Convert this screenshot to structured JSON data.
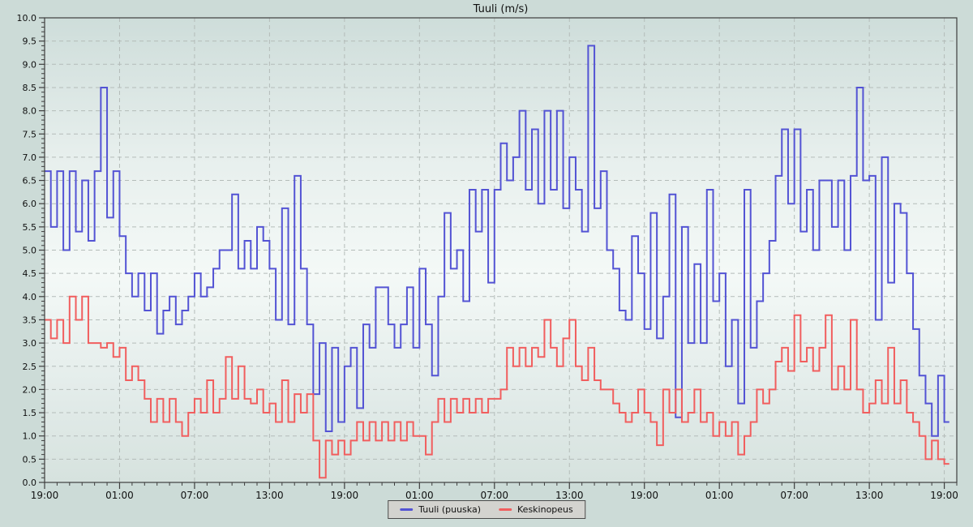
{
  "title": "Tuuli (m/s)",
  "legend": {
    "items": [
      {
        "label": "Tuuli (puuska)",
        "color": "#5353d4"
      },
      {
        "label": "Keskinopeus",
        "color": "#f15e5e"
      }
    ]
  },
  "colors": {
    "page_bg": "#ccdbd7",
    "grid": "#b4bcb9",
    "axis": "#3e3e3e",
    "text": "#101010",
    "legend_bg": "#d3d3cf",
    "legend_border": "#4a4a4a"
  },
  "chart_data": {
    "type": "line",
    "step": true,
    "title": "Tuuli (m/s)",
    "grid": "dashed",
    "legend_position": "bottom-center",
    "ylim": [
      0,
      10
    ],
    "y_tick_step": 0.5,
    "y_minor_step": 0.1,
    "y_tick_labels": [
      "0.0",
      "0.5",
      "1.0",
      "1.5",
      "2.0",
      "2.5",
      "3.0",
      "3.5",
      "4.0",
      "4.5",
      "5.0",
      "5.5",
      "6.0",
      "6.5",
      "7.0",
      "7.5",
      "8.0",
      "8.5",
      "9.0",
      "9.5",
      "10.0"
    ],
    "x_axis": {
      "unit": "hours from first sample (19:00)",
      "total_hours": 72,
      "domain_hours": 73,
      "minor_tick_hours": 1,
      "major_tick_hours": 6
    },
    "x_ticks": {
      "hours": [
        0,
        6,
        12,
        18,
        24,
        30,
        36,
        42,
        48,
        54,
        60,
        66,
        72
      ],
      "labels": [
        "19:00",
        "01:00",
        "07:00",
        "13:00",
        "19:00",
        "01:00",
        "07:00",
        "13:00",
        "19:00",
        "01:00",
        "07:00",
        "13:00",
        "19:00"
      ]
    },
    "sample_step_hours": 0.5,
    "plot_bg_gradient": [
      {
        "offset": 0,
        "color": "#ceddda"
      },
      {
        "offset": 0.3,
        "color": "#e7efed"
      },
      {
        "offset": 0.55,
        "color": "#f4f9f7"
      },
      {
        "offset": 0.8,
        "color": "#e3ecea"
      },
      {
        "offset": 1,
        "color": "#d6e2de"
      }
    ],
    "series": [
      {
        "name": "Tuuli (puuska)",
        "color": "#5353d4",
        "values": [
          6.7,
          5.5,
          6.7,
          5.0,
          6.7,
          5.4,
          6.5,
          5.2,
          6.7,
          8.5,
          5.7,
          6.7,
          5.3,
          4.5,
          4.0,
          4.5,
          3.7,
          4.5,
          3.2,
          3.7,
          4.0,
          3.4,
          3.7,
          4.0,
          4.5,
          4.0,
          4.2,
          4.6,
          5.0,
          5.0,
          6.2,
          4.6,
          5.2,
          4.6,
          5.5,
          5.2,
          4.6,
          3.5,
          5.9,
          3.4,
          6.6,
          4.6,
          3.4,
          1.9,
          3.0,
          1.1,
          2.9,
          1.3,
          2.5,
          2.9,
          1.6,
          3.4,
          2.9,
          4.2,
          4.2,
          3.4,
          2.9,
          3.4,
          4.2,
          2.9,
          4.6,
          3.4,
          2.3,
          4.0,
          5.8,
          4.6,
          5.0,
          3.9,
          6.3,
          5.4,
          6.3,
          4.3,
          6.3,
          7.3,
          6.5,
          7.0,
          8.0,
          6.3,
          7.6,
          6.0,
          8.0,
          6.3,
          8.0,
          5.9,
          7.0,
          6.3,
          5.4,
          9.4,
          5.9,
          6.7,
          5.0,
          4.6,
          3.7,
          3.5,
          5.3,
          4.5,
          3.3,
          5.8,
          3.1,
          4.0,
          6.2,
          1.4,
          5.5,
          3.0,
          4.7,
          3.0,
          6.3,
          3.9,
          4.5,
          2.5,
          3.5,
          1.7,
          6.3,
          2.9,
          3.9,
          4.5,
          5.2,
          6.6,
          7.6,
          6.0,
          7.6,
          5.4,
          6.3,
          5.0,
          6.5,
          6.5,
          5.5,
          6.5,
          5.0,
          6.6,
          8.5,
          6.5,
          6.6,
          3.5,
          7.0,
          4.3,
          6.0,
          5.8,
          4.5,
          3.3,
          2.3,
          1.7,
          1.0,
          2.3,
          1.3
        ]
      },
      {
        "name": "Keskinopeus",
        "color": "#f15e5e",
        "values": [
          3.5,
          3.1,
          3.5,
          3.0,
          4.0,
          3.5,
          4.0,
          3.0,
          3.0,
          2.9,
          3.0,
          2.7,
          2.9,
          2.2,
          2.5,
          2.2,
          1.8,
          1.3,
          1.8,
          1.3,
          1.8,
          1.3,
          1.0,
          1.5,
          1.8,
          1.5,
          2.2,
          1.5,
          1.8,
          2.7,
          1.8,
          2.5,
          1.8,
          1.7,
          2.0,
          1.5,
          1.7,
          1.3,
          2.2,
          1.3,
          1.9,
          1.5,
          1.9,
          0.9,
          0.1,
          0.9,
          0.6,
          0.9,
          0.6,
          0.9,
          1.3,
          0.9,
          1.3,
          0.9,
          1.3,
          0.9,
          1.3,
          0.9,
          1.3,
          1.0,
          1.0,
          0.6,
          1.3,
          1.8,
          1.3,
          1.8,
          1.5,
          1.8,
          1.5,
          1.8,
          1.5,
          1.8,
          1.8,
          2.0,
          2.9,
          2.5,
          2.9,
          2.5,
          2.9,
          2.7,
          3.5,
          2.9,
          2.5,
          3.1,
          3.5,
          2.5,
          2.2,
          2.9,
          2.2,
          2.0,
          2.0,
          1.7,
          1.5,
          1.3,
          1.5,
          2.0,
          1.5,
          1.3,
          0.8,
          2.0,
          1.5,
          2.0,
          1.3,
          1.5,
          2.0,
          1.3,
          1.5,
          1.0,
          1.3,
          1.0,
          1.3,
          0.6,
          1.0,
          1.3,
          2.0,
          1.7,
          2.0,
          2.6,
          2.9,
          2.4,
          3.6,
          2.6,
          2.9,
          2.4,
          2.9,
          3.6,
          2.0,
          2.5,
          2.0,
          3.5,
          2.0,
          1.5,
          1.7,
          2.2,
          1.7,
          2.9,
          1.7,
          2.2,
          1.5,
          1.3,
          1.0,
          0.5,
          0.9,
          0.5,
          0.4
        ]
      }
    ]
  }
}
